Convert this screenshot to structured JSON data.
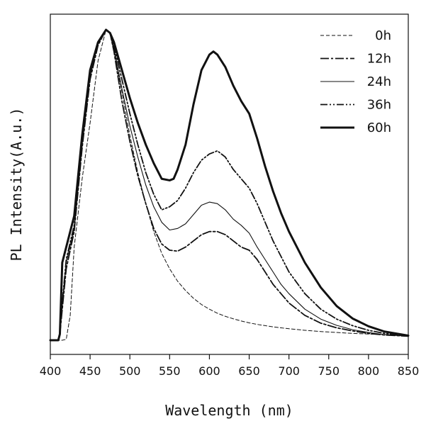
{
  "chart_data": {
    "type": "line",
    "title": "",
    "xlabel": "Wavelength (nm)",
    "ylabel": "PL Intensity(A.u.)",
    "xlim": [
      400,
      850
    ],
    "ylim": [
      0,
      1.0
    ],
    "xticks": [
      400,
      450,
      500,
      550,
      600,
      650,
      700,
      750,
      800,
      850
    ],
    "xtick_labels": [
      "400",
      "450",
      "500",
      "550",
      "600",
      "650",
      "700",
      "750",
      "800",
      "850"
    ],
    "yticks": [],
    "grid": false,
    "legend_position": "top-right",
    "series": [
      {
        "name": "0h",
        "style": "dashed-thin",
        "x": [
          400,
          415,
          420,
          425,
          430,
          440,
          450,
          460,
          470,
          475,
          480,
          490,
          500,
          510,
          520,
          530,
          540,
          550,
          560,
          570,
          580,
          590,
          600,
          610,
          620,
          630,
          640,
          650,
          660,
          670,
          680,
          690,
          700,
          720,
          740,
          760,
          780,
          800,
          820,
          850
        ],
        "y": [
          0.0,
          0.0,
          0.003,
          0.08,
          0.3,
          0.52,
          0.7,
          0.9,
          1.0,
          0.99,
          0.93,
          0.8,
          0.66,
          0.54,
          0.44,
          0.35,
          0.28,
          0.23,
          0.19,
          0.16,
          0.135,
          0.115,
          0.1,
          0.087,
          0.077,
          0.069,
          0.062,
          0.056,
          0.051,
          0.047,
          0.043,
          0.04,
          0.037,
          0.032,
          0.028,
          0.025,
          0.022,
          0.02,
          0.018,
          0.015
        ]
      },
      {
        "name": "12h",
        "style": "dash-dot",
        "x": [
          400,
          410,
          412,
          415,
          420,
          430,
          440,
          450,
          460,
          470,
          475,
          480,
          490,
          500,
          510,
          520,
          530,
          540,
          550,
          560,
          570,
          580,
          590,
          600,
          610,
          620,
          630,
          640,
          650,
          660,
          670,
          680,
          690,
          700,
          720,
          740,
          760,
          780,
          800,
          820,
          850
        ],
        "y": [
          0.0,
          0.0,
          0.02,
          0.1,
          0.23,
          0.35,
          0.62,
          0.84,
          0.95,
          1.0,
          0.99,
          0.93,
          0.77,
          0.64,
          0.53,
          0.44,
          0.36,
          0.31,
          0.29,
          0.287,
          0.3,
          0.32,
          0.34,
          0.35,
          0.35,
          0.34,
          0.32,
          0.3,
          0.29,
          0.26,
          0.22,
          0.18,
          0.15,
          0.12,
          0.08,
          0.055,
          0.04,
          0.03,
          0.022,
          0.017,
          0.013
        ]
      },
      {
        "name": "24h",
        "style": "solid-thin",
        "x": [
          400,
          410,
          412,
          415,
          420,
          430,
          440,
          450,
          460,
          470,
          475,
          480,
          490,
          500,
          510,
          520,
          530,
          540,
          550,
          560,
          570,
          580,
          590,
          600,
          610,
          620,
          630,
          640,
          650,
          660,
          670,
          680,
          690,
          700,
          720,
          740,
          760,
          780,
          800,
          820,
          850
        ],
        "y": [
          0.0,
          0.0,
          0.02,
          0.12,
          0.25,
          0.36,
          0.63,
          0.85,
          0.96,
          1.0,
          0.99,
          0.94,
          0.81,
          0.69,
          0.59,
          0.5,
          0.43,
          0.38,
          0.355,
          0.36,
          0.375,
          0.405,
          0.435,
          0.445,
          0.44,
          0.42,
          0.39,
          0.37,
          0.345,
          0.3,
          0.26,
          0.22,
          0.18,
          0.15,
          0.1,
          0.068,
          0.048,
          0.034,
          0.025,
          0.018,
          0.013
        ]
      },
      {
        "name": "36h",
        "style": "dash-dot-dot",
        "x": [
          400,
          410,
          412,
          415,
          420,
          430,
          440,
          450,
          460,
          470,
          475,
          480,
          490,
          500,
          510,
          520,
          530,
          540,
          550,
          560,
          570,
          580,
          590,
          600,
          610,
          620,
          630,
          640,
          650,
          660,
          670,
          680,
          690,
          700,
          720,
          740,
          760,
          780,
          800,
          820,
          850
        ],
        "y": [
          0.0,
          0.0,
          0.02,
          0.12,
          0.26,
          0.37,
          0.64,
          0.86,
          0.96,
          1.0,
          0.99,
          0.95,
          0.84,
          0.73,
          0.63,
          0.54,
          0.47,
          0.42,
          0.43,
          0.45,
          0.49,
          0.54,
          0.58,
          0.6,
          0.61,
          0.59,
          0.55,
          0.52,
          0.49,
          0.44,
          0.38,
          0.32,
          0.27,
          0.22,
          0.15,
          0.1,
          0.068,
          0.047,
          0.032,
          0.022,
          0.014
        ]
      },
      {
        "name": "60h",
        "style": "solid-thick",
        "x": [
          400,
          410,
          412,
          415,
          420,
          430,
          440,
          450,
          460,
          470,
          475,
          480,
          490,
          500,
          510,
          520,
          530,
          540,
          550,
          555,
          560,
          570,
          580,
          590,
          600,
          605,
          610,
          620,
          630,
          640,
          650,
          660,
          670,
          680,
          690,
          700,
          720,
          740,
          760,
          780,
          800,
          820,
          850
        ],
        "y": [
          0.0,
          0.0,
          0.02,
          0.25,
          0.3,
          0.4,
          0.66,
          0.87,
          0.96,
          1.0,
          0.99,
          0.96,
          0.87,
          0.78,
          0.7,
          0.63,
          0.57,
          0.52,
          0.515,
          0.52,
          0.55,
          0.63,
          0.76,
          0.87,
          0.92,
          0.93,
          0.92,
          0.88,
          0.82,
          0.77,
          0.73,
          0.65,
          0.56,
          0.48,
          0.41,
          0.35,
          0.25,
          0.17,
          0.11,
          0.07,
          0.045,
          0.028,
          0.015
        ]
      }
    ]
  },
  "colors": {
    "line": "#111111",
    "background": "#ffffff"
  }
}
